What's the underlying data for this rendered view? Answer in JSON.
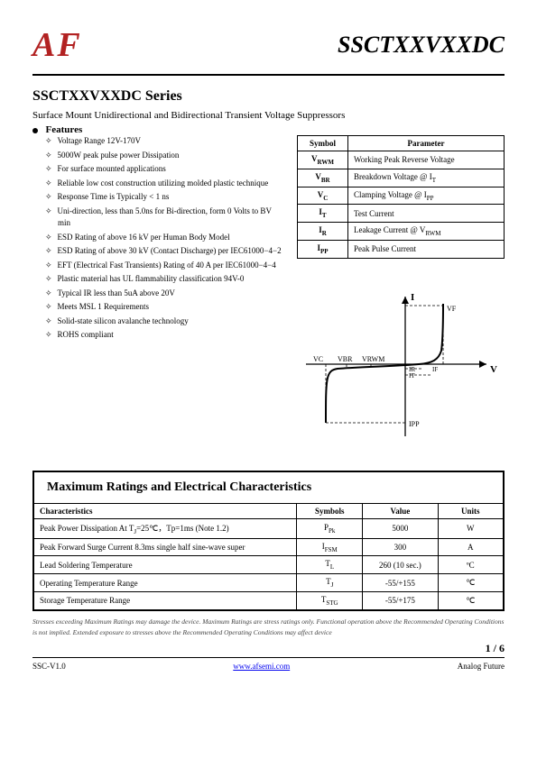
{
  "header": {
    "logo_text": "AF",
    "logo_color": "#b22222",
    "part_number": "SSCTXXVXXDC"
  },
  "series": {
    "title": "SSCTXXVXXDC   Series",
    "subtitle": "Surface Mount Unidirectional and Bidirectional Transient Voltage Suppressors",
    "features_label": "Features"
  },
  "features": [
    "Voltage Range 12V-170V",
    "5000W peak pulse power Dissipation",
    "For surface mounted applications",
    "Reliable low cost construction utilizing molded plastic technique",
    "Response Time is Typically < 1 ns",
    "Uni-direction, less than 5.0ns for Bi-direction, form 0 Volts to BV min",
    "ESD Rating of above 16 kV per Human Body Model",
    "ESD Rating of above 30 kV (Contact Discharge) per IEC61000−4−2",
    "EFT (Electrical Fast Transients) Rating of 40 A per IEC61000−4−4",
    "Plastic material has UL flammability classification 94V-0",
    "Typical IR less than 5uA above 20V",
    "Meets MSL 1 Requirements",
    "Solid-state silicon avalanche technology",
    "ROHS compliant"
  ],
  "param_table": {
    "headers": [
      "Symbol",
      "Parameter"
    ],
    "rows": [
      {
        "symbol": "V",
        "sub": "RWM",
        "parameter": "Working Peak Reverse Voltage"
      },
      {
        "symbol": "V",
        "sub": "BR",
        "parameter": "Breakdown Voltage @ I",
        "parameter_sub": "T"
      },
      {
        "symbol": "V",
        "sub": "C",
        "parameter": "Clamping Voltage @ I",
        "parameter_sub": "PP"
      },
      {
        "symbol": "I",
        "sub": "T",
        "parameter": "Test Current"
      },
      {
        "symbol": "I",
        "sub": "R",
        "parameter": "Leakage Current @ V",
        "parameter_sub": "RWM"
      },
      {
        "symbol": "I",
        "sub": "PP",
        "parameter": "Peak Pulse Current"
      }
    ]
  },
  "diagram": {
    "labels": {
      "I": "I",
      "V": "V",
      "VC": "VC",
      "VBR": "VBR",
      "VRWM": "VRWM",
      "VF": "VF",
      "IR": "IR",
      "IT": "IT",
      "IF": "IF",
      "IPP": "IPP"
    },
    "line_color": "#000000",
    "dash": "4,3"
  },
  "max_section": {
    "heading": "Maximum Ratings and Electrical Characteristics",
    "headers": [
      "Characteristics",
      "Symbols",
      "Value",
      "Units"
    ],
    "rows": [
      {
        "char": "Peak Power Dissipation At T",
        "char_sub": "J",
        "char_cont": "=25℃，Tp=1ms (Note 1.2)",
        "symbol": "P",
        "sym_sub": "Pk",
        "value": "5000",
        "unit": "W"
      },
      {
        "char": "Peak Forward Surge Current 8.3ms single half sine-wave super",
        "symbol": "I",
        "sym_sub": "FSM",
        "value": "300",
        "unit": "A"
      },
      {
        "char": "Lead Soldering Temperature",
        "symbol": "T",
        "sym_sub": "L",
        "value": "260 (10 sec.)",
        "unit": "ºC"
      },
      {
        "char": "Operating Temperature Range",
        "symbol": "T",
        "sym_sub": "J",
        "value": "-55/+155",
        "unit": "℃"
      },
      {
        "char": "Storage Temperature Range",
        "symbol": "T",
        "sym_sub": "STG",
        "value": "-55/+175",
        "unit": "℃"
      }
    ],
    "stress_note": "Stresses exceeding Maximum Ratings may damage the device. Maximum Ratings are stress ratings only. Functional operation above the Recommended Operating Conditions is not implied. Extended exposure to stresses above the Recommended Operating Conditions may affect device"
  },
  "footer": {
    "page_num": "1 / 6",
    "left": "SSC-V1.0",
    "url": "www.afsemi.com",
    "right": "Analog Future"
  }
}
